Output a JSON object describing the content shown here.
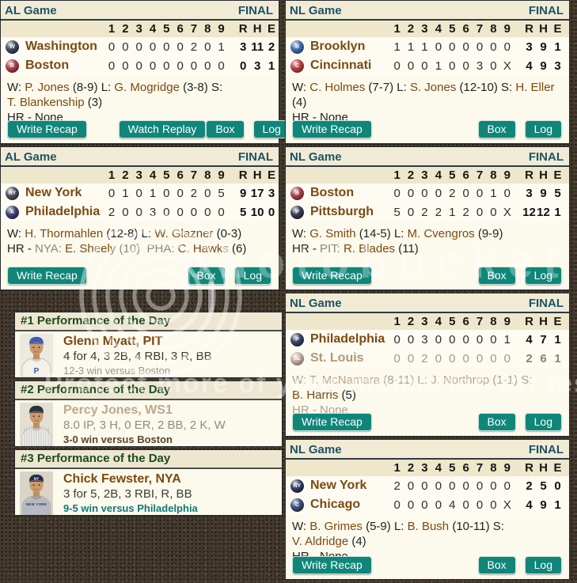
{
  "colors": {
    "accent_teal": "#0F8679",
    "link_brown": "#7B4A10",
    "header_teal": "#1D5365",
    "perf_green": "#1D4A20",
    "panel_cream": "#FCF9ED"
  },
  "innings_header": [
    "1",
    "2",
    "3",
    "4",
    "5",
    "6",
    "7",
    "8",
    "9",
    "R",
    "H",
    "E"
  ],
  "watermark": {
    "brand": "photobucket",
    "tagline": "Protect more of your memories for less!"
  },
  "games": [
    {
      "panel": "g1",
      "league": "AL Game",
      "status": "FINAL",
      "teams": [
        {
          "name": "Washington",
          "logo_color": "#2c3752",
          "logo_letter": "W",
          "faded": false,
          "innings": [
            "0",
            "0",
            "0",
            "0",
            "0",
            "0",
            "2",
            "0",
            "1"
          ],
          "r": "3",
          "h": "11",
          "e": "2"
        },
        {
          "name": "Boston",
          "logo_color": "#9e2f35",
          "logo_letter": "B",
          "faded": false,
          "innings": [
            "0",
            "0",
            "0",
            "0",
            "0",
            "0",
            "0",
            "0",
            "0"
          ],
          "r": "0",
          "h": "3",
          "e": "1"
        }
      ],
      "pitching": [
        [
          [
            "W: ",
            "lb"
          ],
          [
            "P. Jones",
            "nm"
          ],
          [
            " (8-9) ",
            "lb"
          ],
          [
            "L: ",
            "lb"
          ],
          [
            "G. Mogridge",
            "nm"
          ],
          [
            " (3-8) ",
            "lb"
          ],
          [
            "S:",
            "lb"
          ]
        ],
        [
          [
            "T. Blankenship",
            "nm"
          ],
          [
            " (3)",
            "lb"
          ]
        ],
        [
          [
            "HR - None",
            "lb"
          ]
        ]
      ],
      "buttons": [
        "Write Recap",
        "Watch Replay",
        "Box",
        "Log"
      ]
    },
    {
      "panel": "g2",
      "league": "NL Game",
      "status": "FINAL",
      "teams": [
        {
          "name": "Brooklyn",
          "logo_color": "#2f5fa3",
          "logo_letter": "B",
          "faded": false,
          "innings": [
            "1",
            "1",
            "1",
            "0",
            "0",
            "0",
            "0",
            "0",
            "0"
          ],
          "r": "3",
          "h": "9",
          "e": "1"
        },
        {
          "name": "Cincinnati",
          "logo_color": "#b03030",
          "logo_letter": "C",
          "faded": false,
          "innings": [
            "0",
            "0",
            "0",
            "1",
            "0",
            "0",
            "3",
            "0",
            "X"
          ],
          "r": "4",
          "h": "9",
          "e": "3"
        }
      ],
      "pitching": [
        [
          [
            "W: ",
            "lb"
          ],
          [
            "C. Holmes",
            "nm"
          ],
          [
            " (7-7) ",
            "lb"
          ],
          [
            "L: ",
            "lb"
          ],
          [
            "S. Jones",
            "nm"
          ],
          [
            " (12-10) ",
            "lb"
          ],
          [
            "S: ",
            "lb"
          ],
          [
            "H. Eller",
            "nm"
          ]
        ],
        [
          [
            "(4)",
            "lb"
          ]
        ],
        [
          [
            "HR - None",
            "lb"
          ]
        ]
      ],
      "buttons": [
        "Write Recap",
        "Box",
        "Log"
      ]
    },
    {
      "panel": "g3",
      "league": "AL Game",
      "status": "FINAL",
      "teams": [
        {
          "name": "New York",
          "logo_color": "#39404f",
          "logo_letter": "NY",
          "faded": false,
          "innings": [
            "0",
            "1",
            "0",
            "1",
            "0",
            "0",
            "2",
            "0",
            "5"
          ],
          "r": "9",
          "h": "17",
          "e": "3"
        },
        {
          "name": "Philadelphia",
          "logo_color": "#2b2e63",
          "logo_letter": "A",
          "faded": false,
          "innings": [
            "2",
            "0",
            "0",
            "3",
            "0",
            "0",
            "0",
            "0",
            "0"
          ],
          "r": "5",
          "h": "10",
          "e": "0"
        }
      ],
      "pitching": [
        [
          [
            "W: ",
            "lb"
          ],
          [
            "H. Thormahlen",
            "nm"
          ],
          [
            " (12-8) ",
            "lb"
          ],
          [
            "L: ",
            "lb"
          ],
          [
            "W. Glazner",
            "nm"
          ],
          [
            " (0-3)",
            "lb"
          ]
        ],
        [
          [
            "HR - ",
            "lb"
          ],
          [
            "NYA: ",
            "ab"
          ],
          [
            "E. Sheely",
            "nm"
          ],
          [
            " (10)  ",
            "ab"
          ],
          [
            "PHA: ",
            "ab"
          ],
          [
            "C. Hawks",
            "nm"
          ],
          [
            " (6)",
            "lb"
          ]
        ]
      ],
      "buttons": [
        "Write Recap",
        "Box",
        "Log"
      ]
    },
    {
      "panel": "g4",
      "league": "NL Game",
      "status": "FINAL",
      "teams": [
        {
          "name": "Boston",
          "logo_color": "#a03038",
          "logo_letter": "B",
          "faded": false,
          "innings": [
            "0",
            "0",
            "0",
            "0",
            "2",
            "0",
            "0",
            "1",
            "0"
          ],
          "r": "3",
          "h": "9",
          "e": "5"
        },
        {
          "name": "Pittsburgh",
          "logo_color": "#252a47",
          "logo_letter": "P",
          "faded": false,
          "innings": [
            "5",
            "0",
            "2",
            "2",
            "1",
            "2",
            "0",
            "0",
            "X"
          ],
          "r": "12",
          "h": "12",
          "e": "1"
        }
      ],
      "pitching": [
        [
          [
            "W: ",
            "lb"
          ],
          [
            "G. Smith",
            "nm"
          ],
          [
            " (14-5) ",
            "lb"
          ],
          [
            "L: ",
            "lb"
          ],
          [
            "M. Cvengros",
            "nm"
          ],
          [
            " (9-9)",
            "lb"
          ]
        ],
        [
          [
            "HR - ",
            "lb"
          ],
          [
            "PIT: ",
            "ab"
          ],
          [
            "R. Blades",
            "nm"
          ],
          [
            " (11)",
            "lb"
          ]
        ]
      ],
      "buttons": [
        "Write Recap",
        "Box",
        "Log"
      ]
    },
    {
      "panel": "g5",
      "league": "NL Game",
      "status": "FINAL",
      "teams": [
        {
          "name": "Philadelphia",
          "logo_color": "#283058",
          "logo_letter": "P",
          "faded": false,
          "innings": [
            "0",
            "0",
            "3",
            "0",
            "0",
            "0",
            "0",
            "0",
            "1"
          ],
          "r": "4",
          "h": "7",
          "e": "1"
        },
        {
          "name": "St. Louis",
          "logo_color": "#c4a5a0",
          "logo_letter": "SL",
          "faded": true,
          "innings": [
            "0",
            "0",
            "2",
            "0",
            "0",
            "0",
            "0",
            "0",
            "0"
          ],
          "r": "2",
          "h": "6",
          "e": "1"
        }
      ],
      "pitching": [
        [
          [
            "W: ",
            "lbf"
          ],
          [
            "T. McNamara",
            "nmf"
          ],
          [
            " (8-11) ",
            "lbf"
          ],
          [
            "L: ",
            "lbf"
          ],
          [
            "J. Northrop",
            "nmf"
          ],
          [
            " (1-1) ",
            "lbf"
          ],
          [
            "S:",
            "lbf"
          ]
        ],
        [
          [
            "B. Harris",
            "nm"
          ],
          [
            " (5)",
            "lb"
          ]
        ],
        [
          [
            "HR - None",
            "lbf"
          ]
        ]
      ],
      "buttons": [
        "Write Recap",
        "Box",
        "Log"
      ]
    },
    {
      "panel": "g6",
      "league": "NL Game",
      "status": "FINAL",
      "teams": [
        {
          "name": "New York",
          "logo_color": "#1f2a55",
          "logo_letter": "NY",
          "faded": false,
          "innings": [
            "2",
            "0",
            "0",
            "0",
            "0",
            "0",
            "0",
            "0",
            "0"
          ],
          "r": "2",
          "h": "5",
          "e": "0"
        },
        {
          "name": "Chicago",
          "logo_color": "#2b3a6b",
          "logo_letter": "C",
          "faded": false,
          "innings": [
            "0",
            "0",
            "0",
            "0",
            "4",
            "0",
            "0",
            "0",
            "X"
          ],
          "r": "4",
          "h": "9",
          "e": "1"
        }
      ],
      "pitching": [
        [
          [
            "W: ",
            "lb"
          ],
          [
            "B. Grimes",
            "nm"
          ],
          [
            " (5-9) ",
            "lb"
          ],
          [
            "L: ",
            "lb"
          ],
          [
            "B. Bush",
            "nm"
          ],
          [
            " (10-11) ",
            "lb"
          ],
          [
            "S:",
            "lb"
          ]
        ],
        [
          [
            "V. Aldridge",
            "nm"
          ],
          [
            " (4)",
            "lb"
          ]
        ],
        [
          [
            "HR - None",
            "lb"
          ]
        ]
      ],
      "buttons": [
        "Write Recap",
        "Box",
        "Log"
      ]
    }
  ],
  "performances": [
    {
      "panel": "p1",
      "title": "#1 Performance of the Day",
      "player": "Glenn Myatt, PIT",
      "line": "4 for 4, 3 2B, 4 RBI, 3 R, BB",
      "result": "12-3 win versus Boston",
      "name_color": "#7b4a10",
      "line_color": "#3c3c38",
      "result_color": "#9b968a",
      "result_bold": false,
      "portrait": {
        "bg": "#eceadf",
        "cap": "#3a5bb4",
        "jersey": "#f4f1ea",
        "chest": "P",
        "chest_color": "#3a5bb4"
      }
    },
    {
      "panel": "p2",
      "title": "#2 Performance of the Day",
      "player": "Percy Jones, WS1",
      "line": "8.0 IP, 3 H, 0 ER, 2 BB, 2 K, W",
      "result": "3-0 win versus Boston",
      "name_color": "#b9aa8e",
      "line_color": "#8f8c82",
      "result_color": "#55482c",
      "result_bold": true,
      "portrait": {
        "bg": "#e3dfd2",
        "cap": "#2b3140",
        "jersey": "#f2efe8",
        "pinstripes": true
      }
    },
    {
      "panel": "p3",
      "title": "#3 Performance of the Day",
      "player": "Chick Fewster, NYA",
      "line": "3 for 5, 2B, 3 RBI, R, BB",
      "result": "9-5 win versus Philadelphia",
      "name_color": "#7b4a10",
      "line_color": "#3c3c38",
      "result_color": "#0e7a78",
      "result_bold": true,
      "portrait": {
        "bg": "#d9d4c6",
        "cap": "#202c50",
        "capText": "NY",
        "jersey": "#b7bac2",
        "jersey_label": "NEW YORK",
        "label_color": "#2b3757"
      }
    }
  ]
}
